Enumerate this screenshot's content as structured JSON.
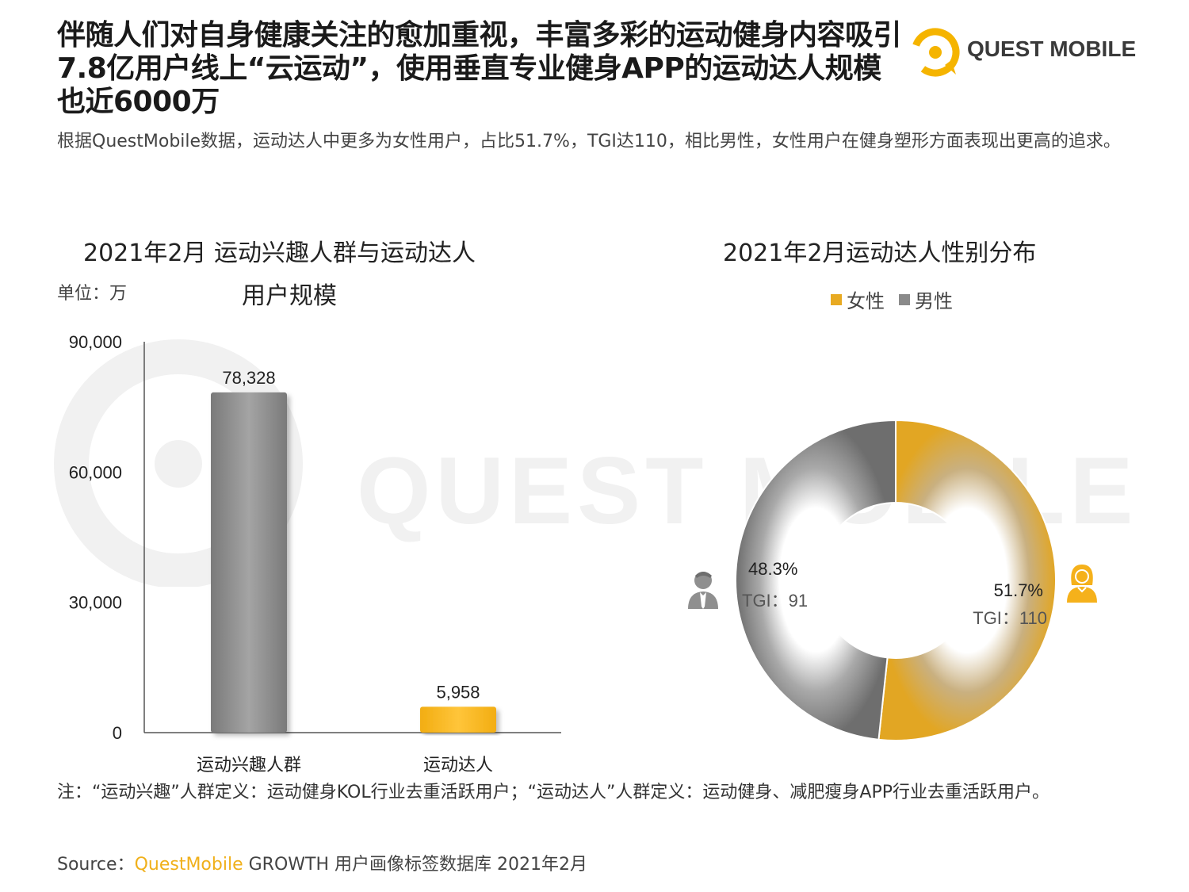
{
  "header": {
    "headline": "伴随人们对自身健康关注的愈加重视，丰富多彩的运动健身内容吸引7.8亿用户线上“云运动”，使用垂直专业健身APP的运动达人规模也近6000万",
    "subtitle": "根据QuestMobile数据，运动达人中更多为女性用户，占比51.7%，TGI达110，相比男性，女性用户在健身塑形方面表现出更高的追求。",
    "logo_text": "QUEST MOBILE"
  },
  "watermark": {
    "text": "QUEST MOBILE"
  },
  "left_chart": {
    "title_line1": "2021年2月 运动兴趣人群与运动达人",
    "title_line2": "用户规模",
    "unit": "单位：万"
  },
  "right_chart": {
    "title": "2021年2月运动达人性别分布",
    "legend": [
      "女性",
      "男性"
    ]
  },
  "chart_data": [
    {
      "type": "bar",
      "title": "2021年2月 运动兴趣人群与运动达人用户规模",
      "unit": "单位：万",
      "categories": [
        "运动兴趣人群",
        "运动达人"
      ],
      "values": [
        78328,
        5958
      ],
      "value_labels": [
        "78,328",
        "5,958"
      ],
      "ylim": [
        0,
        90000
      ],
      "yticks": [
        0,
        30000,
        60000,
        90000
      ],
      "ytick_labels": [
        "0",
        "30,000",
        "60,000",
        "90,000"
      ],
      "colors": [
        "#8a8a8a",
        "#f5b11b"
      ],
      "grid": false
    },
    {
      "type": "pie",
      "subtype": "donut",
      "title": "2021年2月运动达人性别分布",
      "legend_position": "top",
      "slices": [
        {
          "label": "女性",
          "value": 51.7,
          "value_label": "51.7%",
          "tgi_label": "TGI：110",
          "color": "#e8aa22"
        },
        {
          "label": "男性",
          "value": 48.3,
          "value_label": "48.3%",
          "tgi_label": "TGI：91",
          "color": "#8a8a8a"
        }
      ]
    }
  ],
  "footer": {
    "note": "注：“运动兴趣”人群定义：运动健身KOL行业去重活跃用户；“运动达人”人群定义：运动健身、减肥瘦身APP行业去重活跃用户。",
    "source_prefix": "Source：",
    "source_brand": "QuestMobile",
    "source_rest": " GROWTH 用户画像标签数据库 2021年2月"
  },
  "icons": {
    "female": "female-user-icon",
    "male": "male-user-icon",
    "logo": "questmobile-logo-icon"
  },
  "colors": {
    "accent": "#f5b11b",
    "gray": "#8a8a8a",
    "dark_gray": "#6e6e6e"
  }
}
